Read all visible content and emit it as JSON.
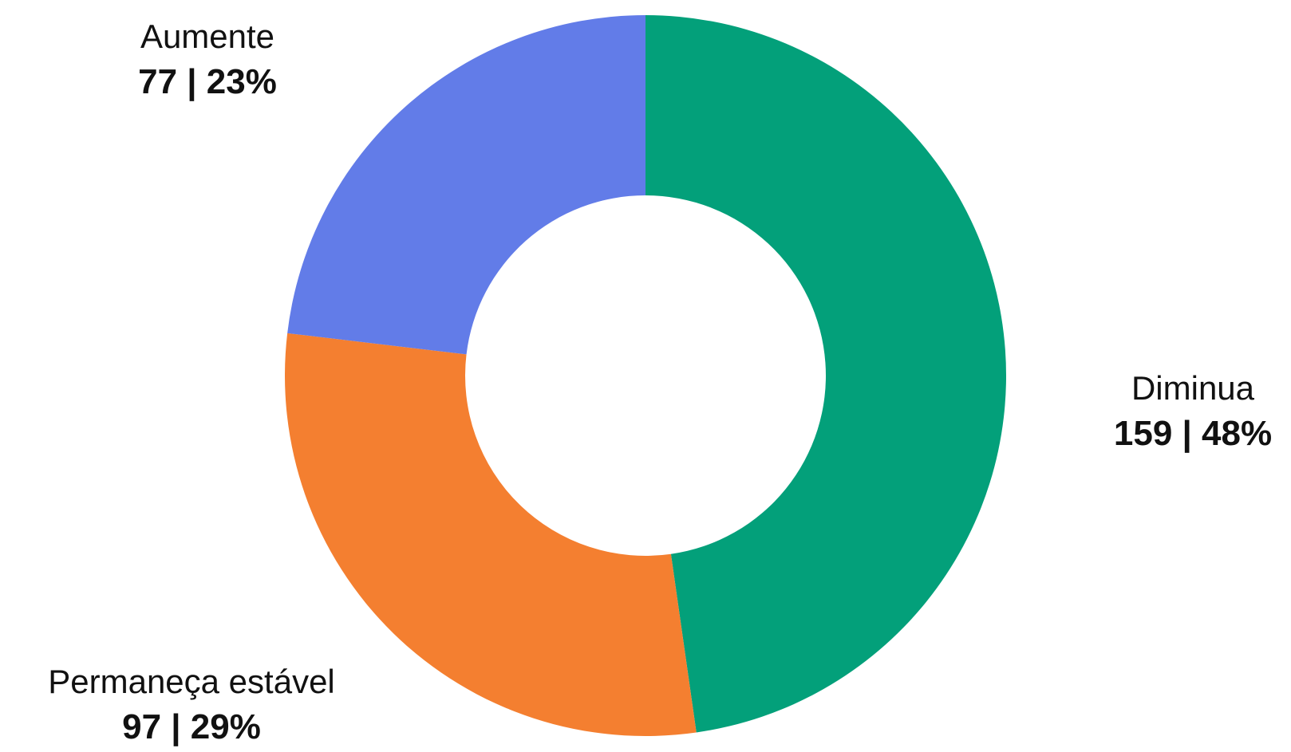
{
  "chart_data": {
    "type": "pie",
    "subtype": "donut",
    "start_angle": "12 o'clock",
    "direction": "clockwise",
    "slices": [
      {
        "label": "Diminua",
        "value": 159,
        "percent": 48,
        "value_text": "159 | 48%",
        "color": "#03a07a"
      },
      {
        "label": "Permaneça estável",
        "value": 97,
        "percent": 29,
        "value_text": "97 | 29%",
        "color": "#f47f30"
      },
      {
        "label": "Aumente",
        "value": 77,
        "percent": 23,
        "value_text": "77 | 23%",
        "color": "#627ce8"
      }
    ]
  }
}
